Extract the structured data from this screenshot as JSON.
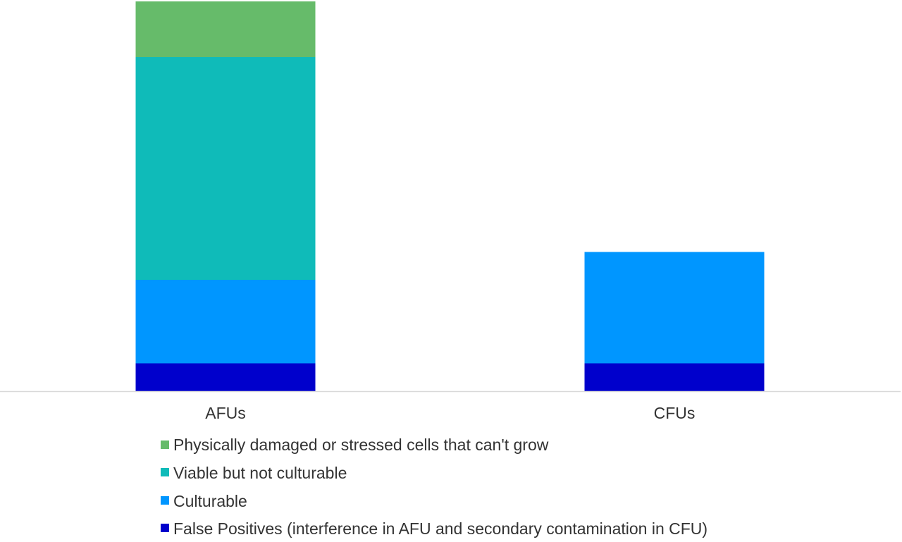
{
  "chart_data": {
    "type": "bar",
    "stacked": true,
    "categories": [
      "AFUs",
      "CFUs"
    ],
    "series": [
      {
        "name": "False Positives (interference in AFU and secondary contamination in CFU)",
        "color": "#0000CC",
        "values": [
          1.0,
          1.0
        ]
      },
      {
        "name": "Culturable",
        "color": "#0096FF",
        "values": [
          3.0,
          4.0
        ]
      },
      {
        "name": "Viable but not culturable",
        "color": "#0FBBB9",
        "values": [
          8.0,
          0
        ]
      },
      {
        "name": "Physically damaged or stressed cells that can't grow",
        "color": "#66BB6A",
        "values": [
          2.0,
          0
        ]
      }
    ],
    "ylim": [
      0,
      14
    ],
    "grid": false,
    "legend_position": "bottom",
    "legend_order": [
      3,
      2,
      1,
      0
    ]
  },
  "colors": {
    "axis_line": "#D9D9D9",
    "text": "#333333"
  }
}
